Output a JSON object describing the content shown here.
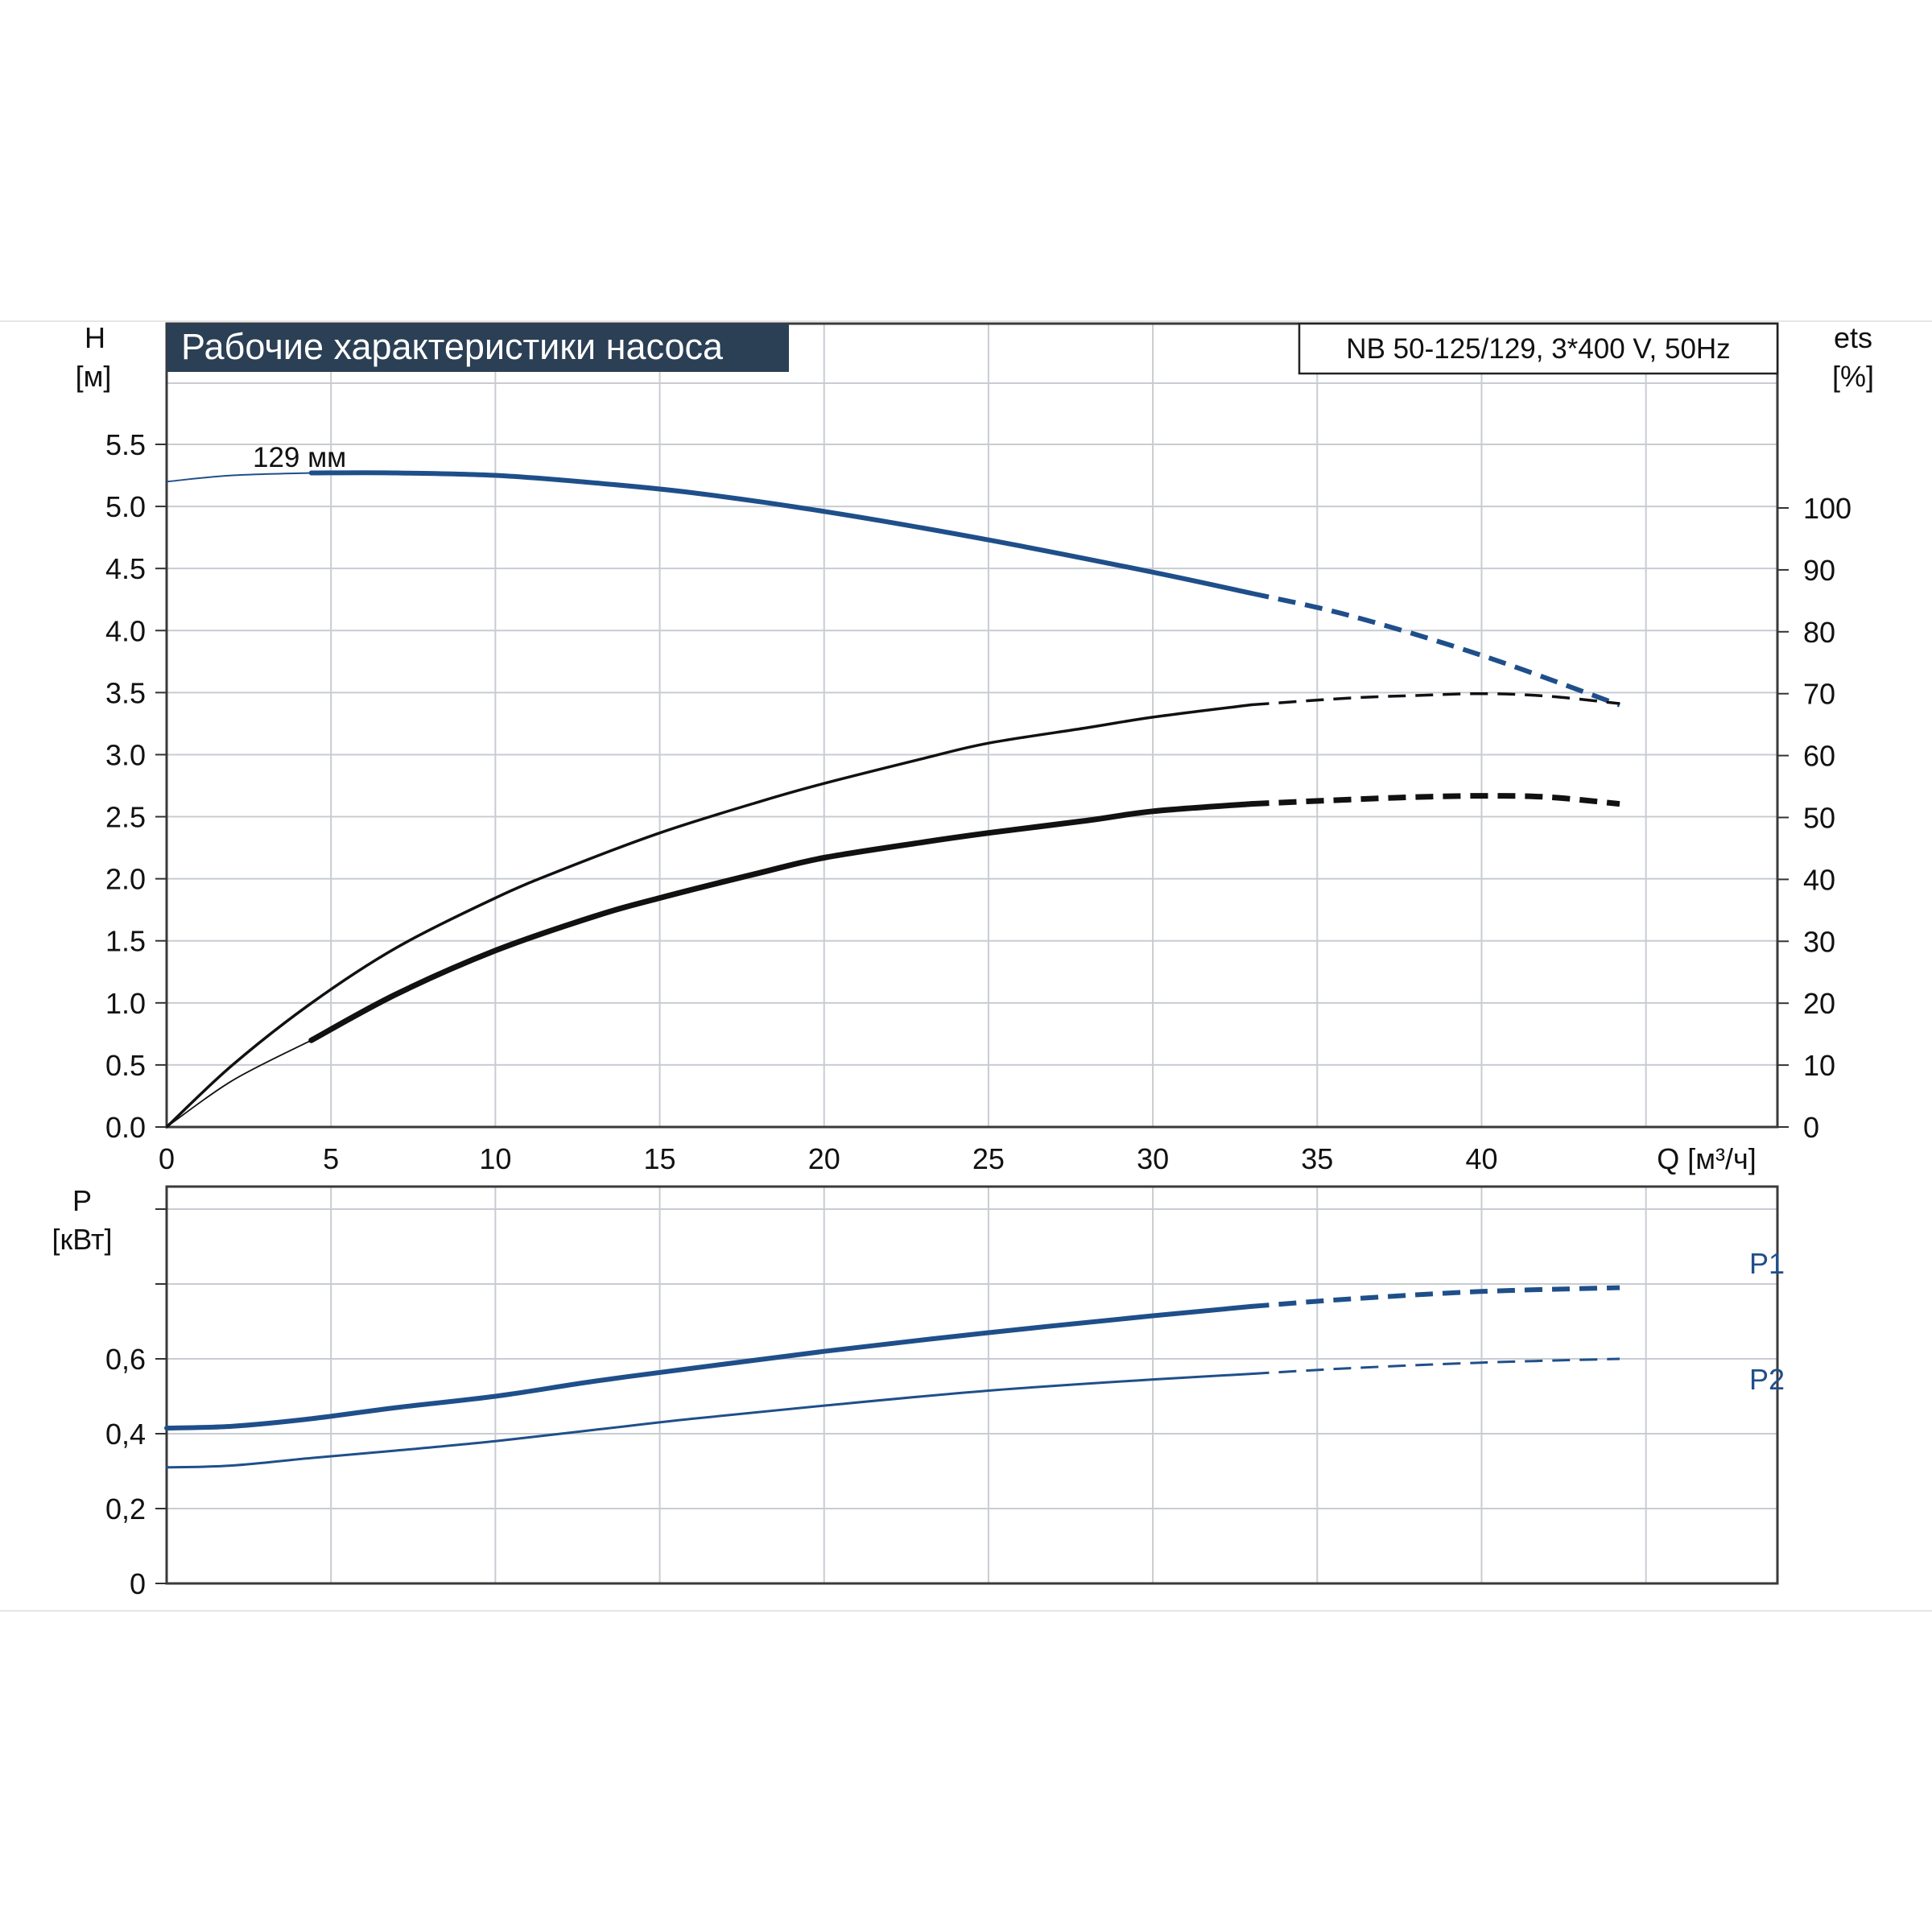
{
  "colors": {
    "accent": "#1f4f8a",
    "curve_black": "#111111",
    "grid": "#c8ccd2",
    "frame": "#3a3a3a",
    "title_bg": "#2b3f55",
    "title_fg": "#ffffff"
  },
  "header": {
    "title": "Рабочие характеристики насоса",
    "model": "NB 50-125/129, 3*400 V, 50Hz"
  },
  "chart_data": [
    {
      "type": "line",
      "title": "Рабочие характеристики насоса",
      "subtitle": "NB 50-125/129, 3*400 V, 50Hz",
      "x_label": "Q [м³/ч]",
      "x_ticks": [
        "0",
        "5",
        "10",
        "15",
        "20",
        "25",
        "30",
        "35",
        "40"
      ],
      "xlim": [
        0,
        49
      ],
      "y_label": "H",
      "y_unit": "[м]",
      "y_ticks": [
        "0.0",
        "0.5",
        "1.0",
        "1.5",
        "2.0",
        "2.5",
        "3.0",
        "3.5",
        "4.0",
        "4.5",
        "5.0",
        "5.5"
      ],
      "ylim": [
        0,
        6.0
      ],
      "y2_label": "ets",
      "y2_unit": "[%]",
      "y2_ticks": [
        "0",
        "10",
        "20",
        "30",
        "40",
        "50",
        "60",
        "70",
        "80",
        "90",
        "100"
      ],
      "y2lim": [
        0,
        120
      ],
      "grid": true,
      "annotation": "129 мм",
      "series": [
        {
          "axis": "left",
          "color": "#1f4f8a",
          "solid_from": 4.4,
          "solid_until": 33,
          "x": [
            0,
            2,
            4.4,
            7,
            10,
            13,
            16,
            20,
            25,
            30,
            33,
            36,
            40,
            44.2
          ],
          "y": [
            5.2,
            5.25,
            5.27,
            5.27,
            5.25,
            5.19,
            5.11,
            4.96,
            4.73,
            4.47,
            4.3,
            4.12,
            3.8,
            3.4
          ]
        },
        {
          "axis": "right",
          "color": "#111111",
          "solid_until": 33,
          "x": [
            0,
            2,
            4.4,
            7,
            10,
            12,
            15,
            18,
            20,
            23,
            25,
            28,
            30,
            33,
            36,
            38,
            40,
            42,
            44.2
          ],
          "y": [
            0,
            10,
            20,
            29,
            37,
            41.5,
            47.5,
            52.5,
            55.5,
            59.5,
            62,
            64.5,
            66.2,
            68.2,
            69.3,
            69.7,
            70,
            69.6,
            68.4
          ]
        },
        {
          "axis": "right",
          "color": "#111111",
          "solid_from": 4.4,
          "solid_until": 33,
          "x": [
            0,
            2,
            4.4,
            7,
            10,
            13,
            15,
            18,
            20,
            23,
            25,
            28,
            30,
            33,
            36,
            38,
            40,
            42,
            44.2
          ],
          "y": [
            0,
            7.5,
            14,
            21.5,
            28.5,
            34,
            37,
            41,
            43.5,
            46,
            47.5,
            49.5,
            51,
            52.2,
            52.9,
            53.3,
            53.5,
            53.3,
            52.2
          ]
        }
      ]
    },
    {
      "type": "line",
      "x_label": "",
      "xlim": [
        0,
        49
      ],
      "y_label": "P",
      "y_unit": "[кВт]",
      "y_ticks": [
        "0",
        "0,2",
        "0,4",
        "0,6"
      ],
      "ylim": [
        0,
        1.05
      ],
      "grid": true,
      "series": [
        {
          "name": "P1",
          "color": "#1f4f8a",
          "solid_until": 33,
          "x": [
            0,
            2,
            4.4,
            7,
            10,
            13,
            16,
            20,
            25,
            30,
            33,
            36,
            40,
            44.2
          ],
          "y": [
            0.415,
            0.42,
            0.44,
            0.47,
            0.5,
            0.54,
            0.575,
            0.62,
            0.67,
            0.715,
            0.74,
            0.76,
            0.78,
            0.79
          ]
        },
        {
          "name": "P2",
          "color": "#1f4f8a",
          "solid_until": 33,
          "x": [
            0,
            2,
            4.4,
            7,
            10,
            13,
            16,
            20,
            25,
            30,
            33,
            36,
            40,
            44.2
          ],
          "y": [
            0.31,
            0.315,
            0.335,
            0.355,
            0.38,
            0.41,
            0.44,
            0.475,
            0.515,
            0.545,
            0.56,
            0.575,
            0.59,
            0.6
          ]
        }
      ]
    }
  ]
}
